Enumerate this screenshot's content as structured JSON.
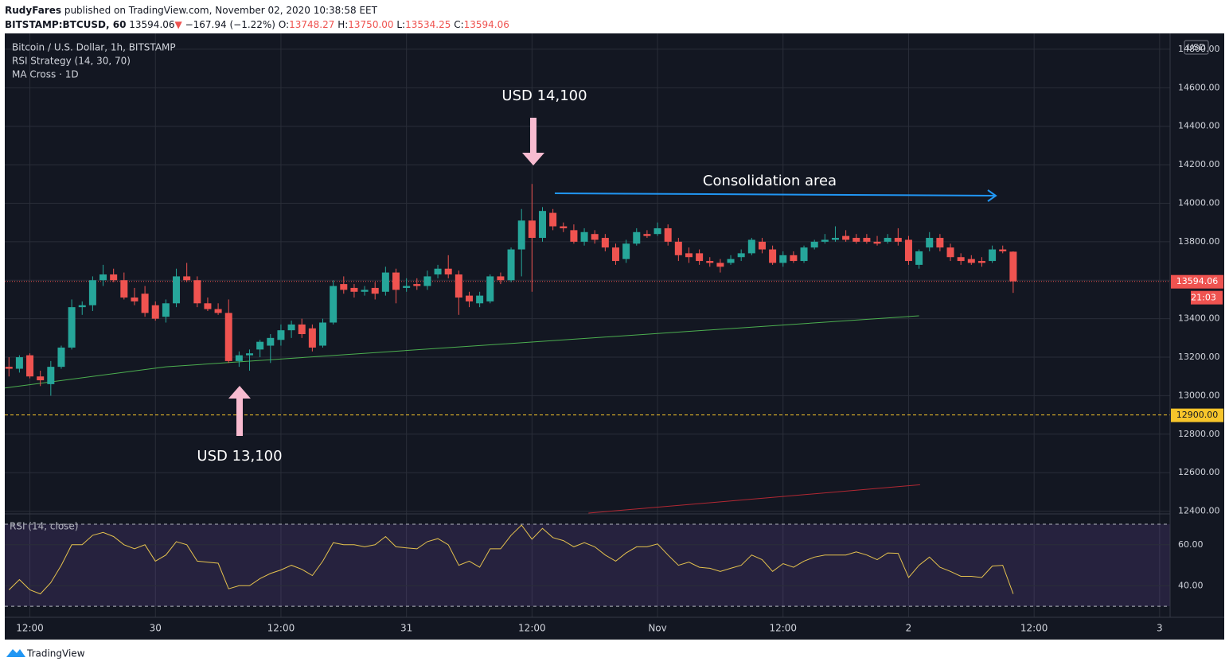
{
  "header": {
    "author": "RudyFares",
    "published": "published on TradingView.com, November 02, 2020 10:38:58 EET",
    "symbol": "BITSTAMP:BTCUSD, 60",
    "last": "13594.06",
    "arrow": "▼",
    "change": "−167.94 (−1.22%)",
    "ohlc": [
      {
        "label": "O:",
        "value": "13748.27"
      },
      {
        "label": "H:",
        "value": "13750.00"
      },
      {
        "label": "L:",
        "value": "13534.25"
      },
      {
        "label": "C:",
        "value": "13594.06"
      }
    ]
  },
  "chart_data": {
    "type": "candlestick",
    "title": "Bitcoin / U.S. Dollar, 1h, BITSTAMP",
    "indicators": [
      "RSI Strategy (14, 30, 70)",
      "MA Cross · 1D"
    ],
    "currency": "USD",
    "up_color": "#26a69a",
    "down_color": "#ef5350",
    "grid": true,
    "open": [
      13150,
      13140,
      13210,
      13100,
      13060,
      13150,
      13250,
      13460,
      13470,
      13600,
      13630,
      13600,
      13510,
      13530,
      13470,
      13410,
      13480,
      13620,
      13600,
      13480,
      13450,
      13430,
      13180,
      13210,
      13240,
      13260,
      13290,
      13340,
      13370,
      13350,
      13260,
      13380,
      13580,
      13560,
      13540,
      13560,
      13540,
      13640,
      13560,
      13580,
      13570,
      13630,
      13660,
      13630,
      13520,
      13480,
      13490,
      13620,
      13600,
      13760,
      13910,
      13820,
      13950,
      13880,
      13860,
      13800,
      13840,
      13820,
      13770,
      13710,
      13790,
      13840,
      13840,
      13870,
      13800,
      13740,
      13740,
      13700,
      13690,
      13690,
      13720,
      13740,
      13800,
      13760,
      13690,
      13730,
      13700,
      13770,
      13800,
      13810,
      13830,
      13820,
      13820,
      13800,
      13800,
      13820,
      13810,
      13680,
      13770,
      13820,
      13770,
      13720,
      13710,
      13700,
      13700,
      13760,
      13748.27
    ],
    "high": [
      13200,
      13210,
      13220,
      13130,
      13180,
      13260,
      13500,
      13490,
      13620,
      13680,
      13660,
      13640,
      13560,
      13570,
      13490,
      13500,
      13660,
      13690,
      13620,
      13510,
      13480,
      13500,
      13230,
      13240,
      13290,
      13320,
      13370,
      13390,
      13400,
      13370,
      13400,
      13600,
      13620,
      13580,
      13570,
      13590,
      13670,
      13660,
      13610,
      13610,
      13650,
      13680,
      13730,
      13650,
      13540,
      13540,
      13630,
      13640,
      13770,
      13970,
      14100,
      13980,
      13970,
      13900,
      13890,
      13870,
      13860,
      13840,
      13790,
      13810,
      13870,
      13860,
      13900,
      13890,
      13820,
      13770,
      13760,
      13720,
      13710,
      13730,
      13760,
      13820,
      13820,
      13780,
      13750,
      13750,
      13780,
      13810,
      13840,
      13880,
      13860,
      13840,
      13840,
      13830,
      13840,
      13870,
      13830,
      13760,
      13850,
      13840,
      13790,
      13740,
      13730,
      13720,
      13780,
      13780,
      13750
    ],
    "low": [
      13100,
      13120,
      13090,
      13050,
      13000,
      13140,
      13240,
      13420,
      13440,
      13570,
      13590,
      13500,
      13470,
      13410,
      13390,
      13380,
      13460,
      13590,
      13460,
      13440,
      13420,
      13170,
      13150,
      13130,
      13200,
      13170,
      13260,
      13300,
      13300,
      13230,
      13250,
      13370,
      13530,
      13510,
      13520,
      13500,
      13520,
      13480,
      13540,
      13550,
      13550,
      13610,
      13610,
      13420,
      13460,
      13460,
      13480,
      13580,
      13590,
      13620,
      13540,
      13800,
      13860,
      13850,
      13790,
      13780,
      13790,
      13750,
      13680,
      13690,
      13780,
      13820,
      13830,
      13780,
      13700,
      13690,
      13680,
      13670,
      13640,
      13680,
      13700,
      13730,
      13740,
      13680,
      13670,
      13690,
      13690,
      13760,
      13790,
      13800,
      13800,
      13790,
      13790,
      13780,
      13790,
      13780,
      13680,
      13660,
      13750,
      13750,
      13700,
      13680,
      13680,
      13670,
      13690,
      13740,
      13534.25
    ],
    "close": [
      13140,
      13200,
      13100,
      13080,
      13150,
      13250,
      13460,
      13470,
      13600,
      13630,
      13600,
      13510,
      13490,
      13430,
      13400,
      13480,
      13620,
      13600,
      13480,
      13450,
      13430,
      13180,
      13210,
      13220,
      13280,
      13300,
      13340,
      13370,
      13320,
      13250,
      13380,
      13570,
      13550,
      13540,
      13550,
      13530,
      13640,
      13550,
      13570,
      13570,
      13620,
      13660,
      13630,
      13510,
      13490,
      13520,
      13620,
      13600,
      13760,
      13910,
      13820,
      13960,
      13880,
      13870,
      13800,
      13850,
      13810,
      13770,
      13700,
      13790,
      13850,
      13830,
      13870,
      13800,
      13730,
      13720,
      13700,
      13690,
      13670,
      13710,
      13740,
      13810,
      13760,
      13690,
      13730,
      13700,
      13770,
      13800,
      13810,
      13820,
      13810,
      13800,
      13800,
      13790,
      13820,
      13800,
      13700,
      13750,
      13820,
      13770,
      13720,
      13700,
      13690,
      13690,
      13760,
      13750,
      13594.06
    ],
    "xlim": [
      -0.4,
      111
    ],
    "xticks": [
      {
        "value": 2,
        "label": "12:00"
      },
      {
        "value": 14,
        "label": "30"
      },
      {
        "value": 26,
        "label": "12:00"
      },
      {
        "value": 38,
        "label": "31"
      },
      {
        "value": 50,
        "label": "12:00"
      },
      {
        "value": 62,
        "label": "Nov"
      },
      {
        "value": 74,
        "label": "12:00"
      },
      {
        "value": 86,
        "label": "2"
      },
      {
        "value": 98,
        "label": "12:00"
      },
      {
        "value": 110,
        "label": "3"
      }
    ],
    "ylim": [
      12390,
      14870
    ],
    "yticks": [
      {
        "value": 14800,
        "label": "14800.00"
      },
      {
        "value": 14600,
        "label": "14600.00"
      },
      {
        "value": 14400,
        "label": "14400.00"
      },
      {
        "value": 14200,
        "label": "14200.00"
      },
      {
        "value": 14000,
        "label": "14000.00"
      },
      {
        "value": 13800,
        "label": "13800.00"
      },
      {
        "value": 13600,
        "label": "13600.00"
      },
      {
        "value": 13400,
        "label": "13400.00"
      },
      {
        "value": 13200,
        "label": "13200.00"
      },
      {
        "value": 13000,
        "label": "13000.00"
      },
      {
        "value": 12800,
        "label": "12800.00"
      },
      {
        "value": 12600,
        "label": "12600.00"
      },
      {
        "value": 12400,
        "label": "12400.00"
      }
    ],
    "price_lines": [
      {
        "value": 13594.06,
        "label": "13594.06",
        "color": "#ef5350",
        "style": "dotted"
      },
      {
        "value": 12900,
        "label": "12900.00",
        "color": "#f7c52b",
        "style": "dashed"
      }
    ],
    "countdown": "21:03",
    "ma_lines": [
      {
        "color": "#4caf50",
        "x": [
          -0.4,
          15,
          87
        ],
        "values": [
          13040,
          13150,
          13415
        ]
      },
      {
        "color": "#b22833",
        "x": [
          55.4,
          87.1
        ],
        "values": [
          12390,
          12537
        ]
      }
    ],
    "annotations": {
      "peak": "USD 14,100",
      "low": "USD 13,100",
      "range": "Consolidation area"
    },
    "rsi": {
      "title": "RSI (14, close)",
      "color": "#e5c24e",
      "values": [
        38,
        43,
        38,
        36,
        41.5,
        50,
        60,
        60,
        64.6,
        66,
        64,
        60,
        58,
        60,
        52,
        55,
        61.5,
        60,
        52,
        51.5,
        51,
        38.5,
        40,
        40,
        43.5,
        46,
        47.7,
        50,
        48,
        45,
        52,
        61,
        60,
        60,
        59,
        60,
        64,
        59,
        58.5,
        58,
        61.5,
        63,
        60,
        50,
        52,
        49,
        58,
        58,
        64.6,
        69.6,
        62.7,
        68,
        63.5,
        62,
        59,
        61,
        59,
        55,
        52,
        56,
        59,
        59,
        60.4,
        55,
        50,
        51.5,
        49,
        48.5,
        47,
        48.5,
        50,
        55,
        52.7,
        47,
        50.8,
        49,
        52,
        54,
        55,
        55,
        55,
        56.5,
        55,
        52.7,
        56,
        55.8,
        44,
        50,
        54,
        49,
        47,
        44.6,
        44.6,
        44,
        49.6,
        50,
        36
      ],
      "ylim": [
        25,
        73.5
      ],
      "levels": [
        30,
        70
      ],
      "yticks": [
        {
          "value": 60,
          "label": "60.00"
        },
        {
          "value": 40,
          "label": "40.00"
        }
      ]
    }
  },
  "footer": {
    "brand": "TradingView"
  }
}
